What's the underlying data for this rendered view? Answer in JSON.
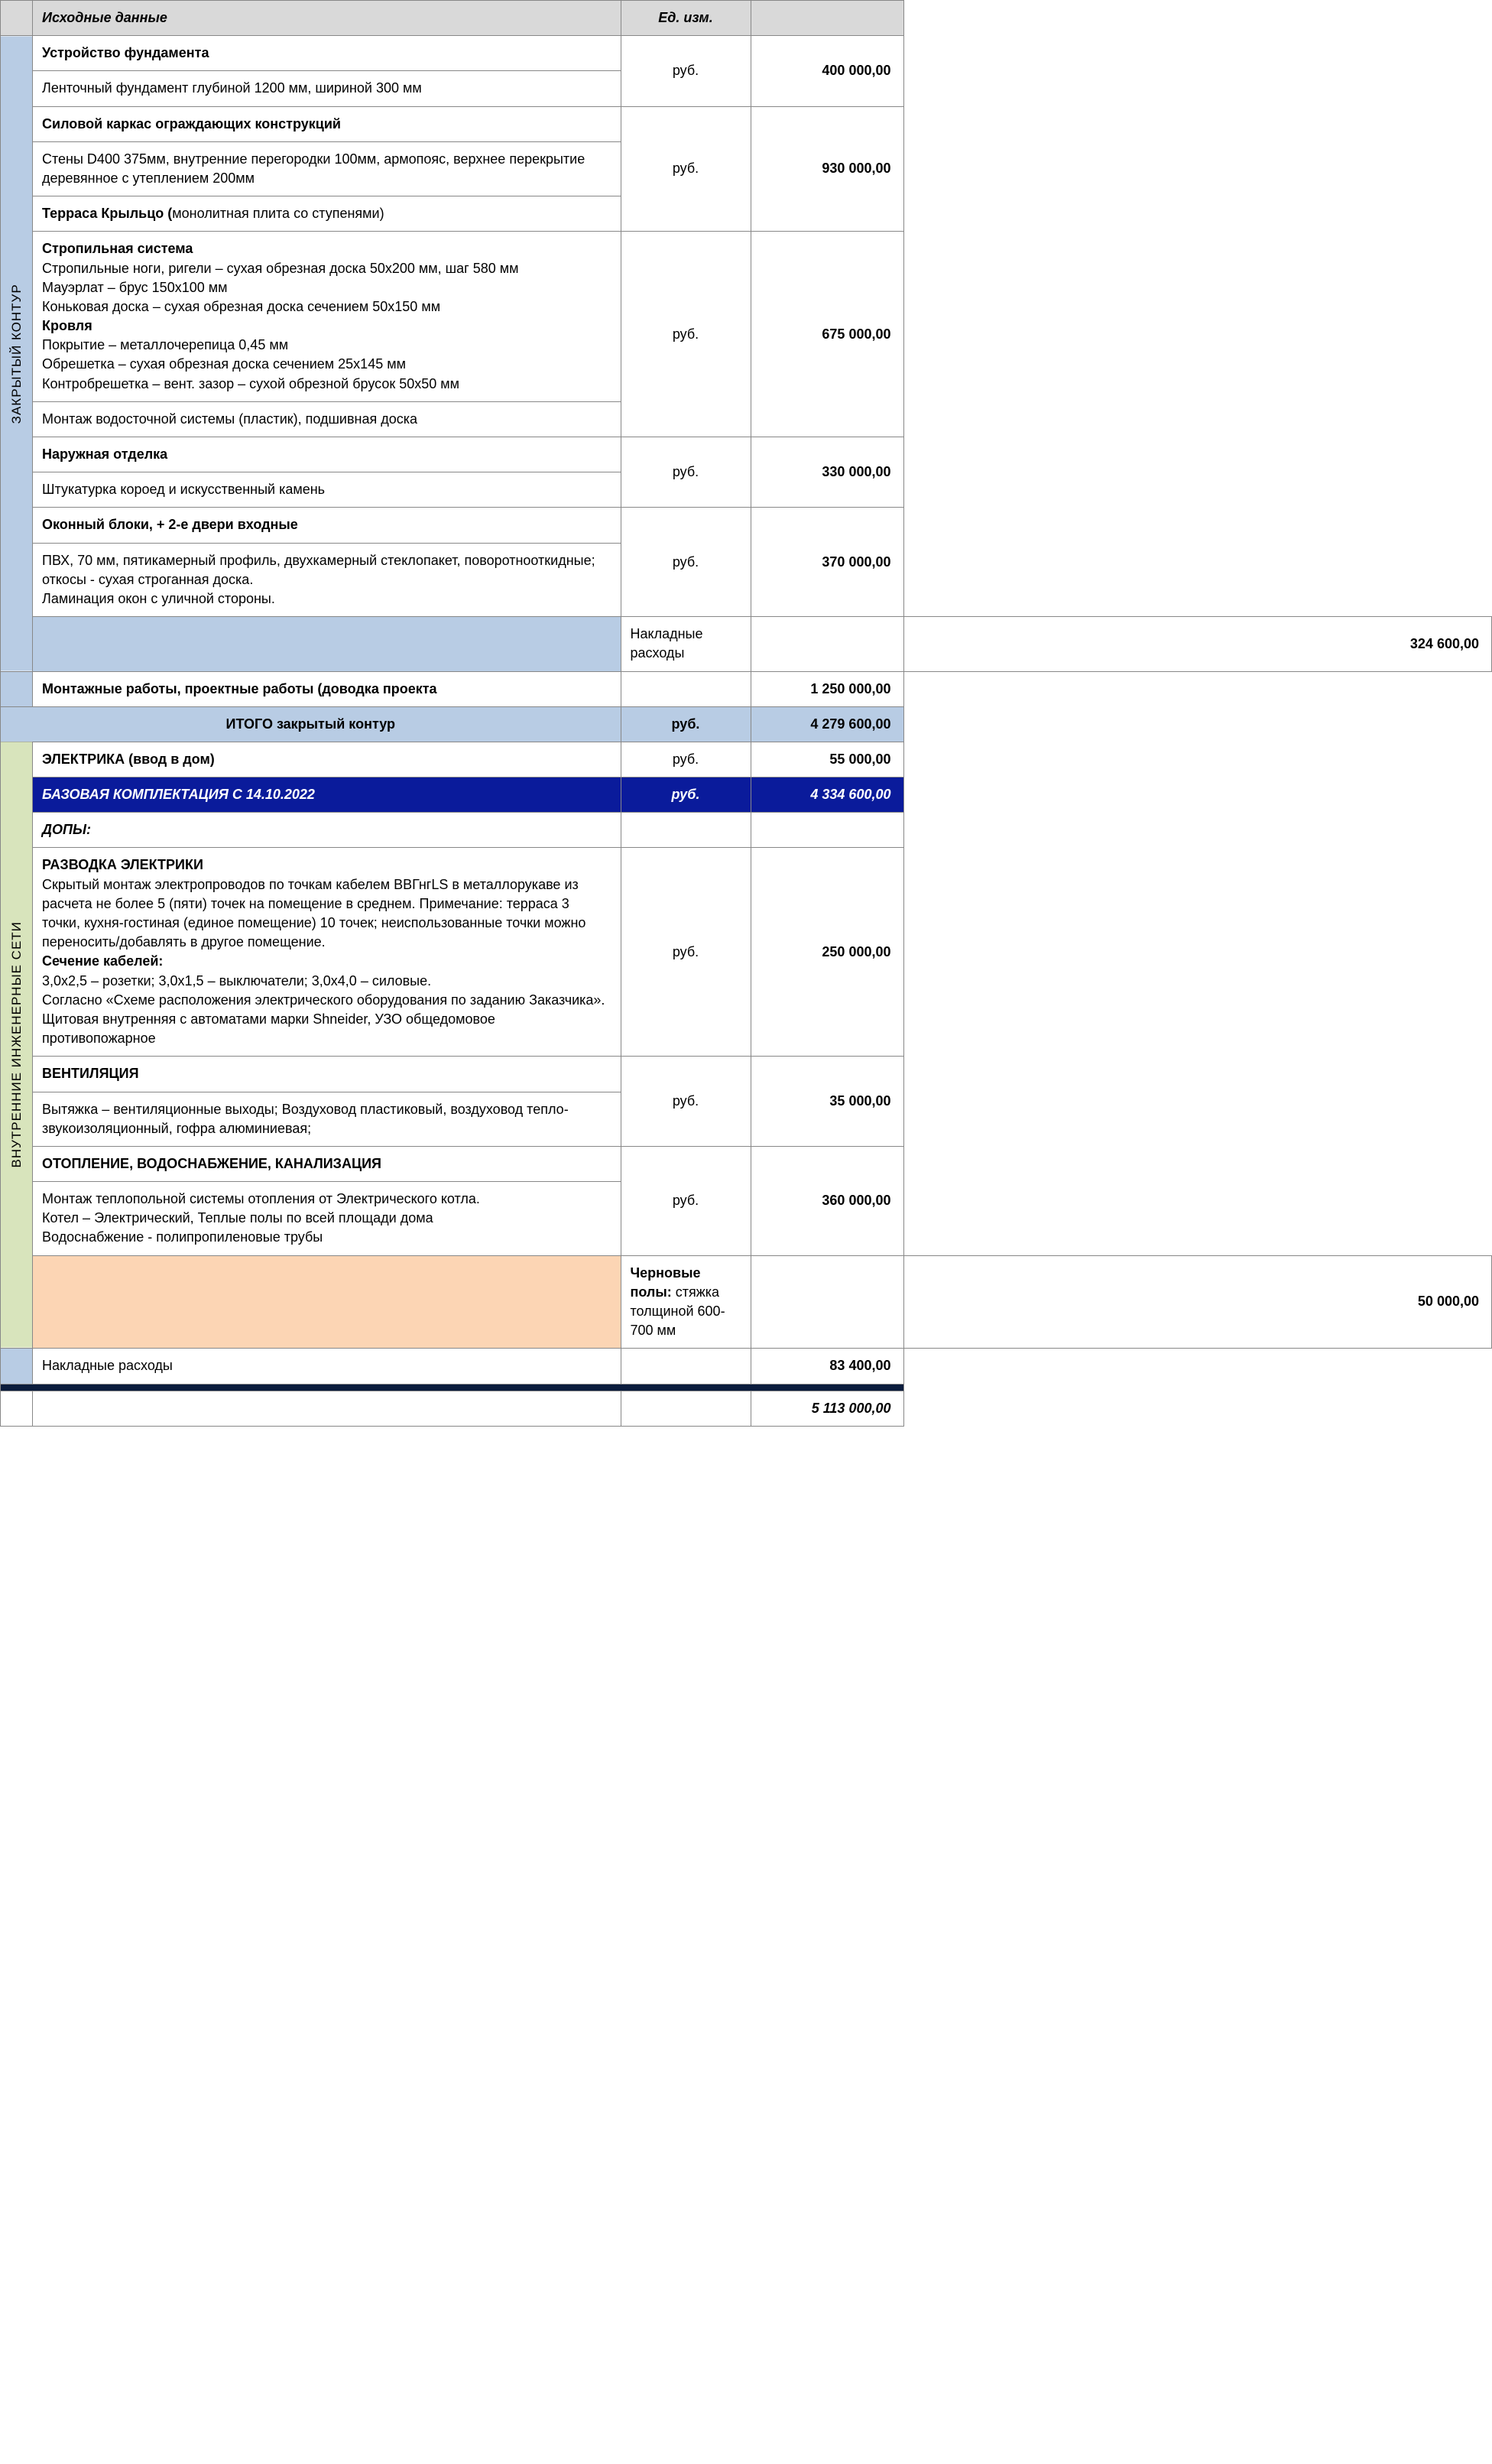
{
  "header": {
    "c1": "Исходные данные",
    "c2": "Ед. изм.",
    "c3": ""
  },
  "unit_rub": "руб.",
  "side1_label": "ЗАКРЫТЫЙ КОНТУР",
  "side2_label": "ВНУТРЕННИЕ ИНЖЕНЕРНЫЕ СЕТИ",
  "s1": {
    "title": "Устройство фундамента",
    "desc": "Ленточный фундамент глубиной 1200 мм, шириной 300 мм",
    "amount": "400 000,00"
  },
  "s2": {
    "title": "Силовой каркас ограждающих конструкций",
    "desc": "Стены D400 375мм, внутренние перегородки 100мм, армопояс, верхнее перекрытие деревянное с утеплением 200мм",
    "title2_a": "Терраса  Крыльцо (",
    "title2_b": "монолитная плита со ступенями)",
    "amount": "930 000,00"
  },
  "s3": {
    "t1": "Стропильная система",
    "d1": "Стропильные ноги, ригели – сухая обрезная доска 50х200 мм, шаг 580 мм\nМауэрлат – брус 150х100 мм\nКоньковая доска – сухая обрезная доска сечением 50х150 мм",
    "t2": "Кровля",
    "d2": "Покрытие – металлочерепица 0,45 мм\nОбрешетка – сухая обрезная доска сечением 25х145 мм\nКонтробрешетка – вент. зазор – сухой обрезной брусок 50х50 мм",
    "extra": "Монтаж водосточной системы (пластик), подшивная доска",
    "amount": "675 000,00"
  },
  "s4": {
    "title": "Наружная отделка",
    "desc": "Штукатурка короед и искусственный камень",
    "amount": "330 000,00"
  },
  "s5": {
    "title": "Оконный блоки, + 2-е двери входные",
    "desc": "ПВХ, 70 мм, пятикамерный профиль, двухкамерный стеклопакет, поворотнооткидные; откосы - сухая строганная доска.\nЛаминация окон с уличной стороны.",
    "amount": "370 000,00"
  },
  "overhead1": {
    "label": "Накладные расходы",
    "amount": "324 600,00"
  },
  "montazh": {
    "label": "Монтажные работы, проектные работы (доводка проекта",
    "amount": "1 250 000,00"
  },
  "total1": {
    "label": "ИТОГО закрытый контур",
    "unit": "руб.",
    "amount": "4 279 600,00"
  },
  "e1": {
    "title": "ЭЛЕКТРИКА (ввод в дом)",
    "amount": "55 000,00"
  },
  "base": {
    "label": "БАЗОВАЯ КОМПЛЕКТАЦИЯ С 14.10.2022",
    "unit": "руб.",
    "amount": "4 334 600,00"
  },
  "dopy": "ДОПЫ:",
  "e2": {
    "t1": "РАЗВОДКА ЭЛЕКТРИКИ",
    "d1": "Скрытый монтаж электропроводов по точкам кабелем ВВГнгLS в металлорукаве из расчета не более 5 (пяти) точек на помещение в среднем. Примечание: терраса 3 точки, кухня-гостиная (единое помещение) 10 точек; неиспользованные точки можно переносить/добавлять в другое помещение.",
    "t2": "Сечение кабелей:",
    "d2": "3,0х2,5 – розетки; 3,0х1,5 – выключатели; 3,0х4,0 – силовые.\nСогласно «Схеме расположения электрического оборудования по заданию Заказчика». Щитовая внутренняя с автоматами марки Shneider, УЗО общедомовое противопожарное",
    "amount": "250 000,00"
  },
  "e3": {
    "title": "ВЕНТИЛЯЦИЯ",
    "desc": "Вытяжка – вентиляционные выходы; Воздуховод пластиковый, воздуховод тепло-звукоизоляционный, гофра алюминиевая;",
    "amount": "35 000,00"
  },
  "e4": {
    "title": "ОТОПЛЕНИЕ, ВОДОСНАБЖЕНИЕ, КАНАЛИЗАЦИЯ",
    "desc": "Монтаж теплопольной системы отопления от Электрического котла.\nКотел – Электрический, Теплые полы по всей площади дома\nВодоснабжение - полипропиленовые трубы",
    "amount": "360 000,00"
  },
  "floor": {
    "t": "Черновые полы: ",
    "d": "стяжка толщиной 600-700 мм",
    "amount": "50 000,00"
  },
  "overhead2": {
    "label": "Накладные расходы",
    "amount": "83 400,00"
  },
  "grand": {
    "amount": "5 113 000,00"
  }
}
